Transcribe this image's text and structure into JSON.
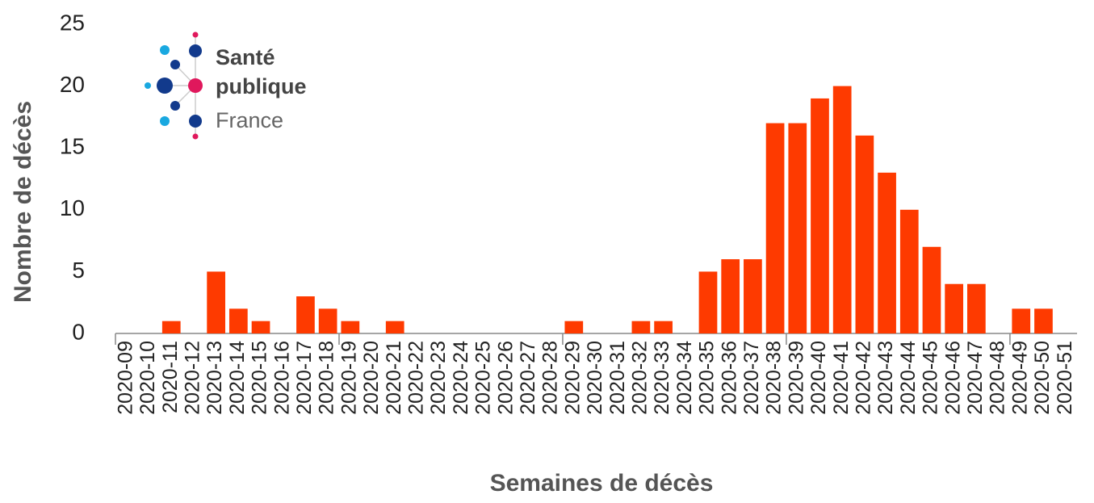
{
  "chart_data": {
    "type": "bar",
    "x_label": "Semaines de décès",
    "y_label": "Nombre de décès",
    "logo": [
      "Santé",
      "publique",
      "France"
    ],
    "categories": [
      "2020-09",
      "2020-10",
      "2020-11",
      "2020-12",
      "2020-13",
      "2020-14",
      "2020-15",
      "2020-16",
      "2020-17",
      "2020-18",
      "2020-19",
      "2020-20",
      "2020-21",
      "2020-22",
      "2020-23",
      "2020-24",
      "2020-25",
      "2020-26",
      "2020-27",
      "2020-28",
      "2020-29",
      "2020-30",
      "2020-31",
      "2020-32",
      "2020-33",
      "2020-34",
      "2020-35",
      "2020-36",
      "2020-37",
      "2020-38",
      "2020-39",
      "2020-40",
      "2020-41",
      "2020-42",
      "2020-43",
      "2020-44",
      "2020-45",
      "2020-46",
      "2020-47",
      "2020-48",
      "2020-49",
      "2020-50",
      "2020-51"
    ],
    "values": [
      0,
      0,
      1,
      0,
      5,
      2,
      1,
      0,
      3,
      2,
      1,
      0,
      1,
      0,
      0,
      0,
      0,
      0,
      0,
      0,
      1,
      0,
      0,
      1,
      1,
      0,
      5,
      6,
      6,
      17,
      17,
      19,
      20,
      16,
      13,
      10,
      7,
      4,
      4,
      0,
      2,
      2,
      0
    ],
    "color": "#fe3a00",
    "ylim": [
      0,
      25
    ],
    "yticks": [
      0,
      5,
      10,
      15,
      20,
      25
    ],
    "grid": false
  }
}
